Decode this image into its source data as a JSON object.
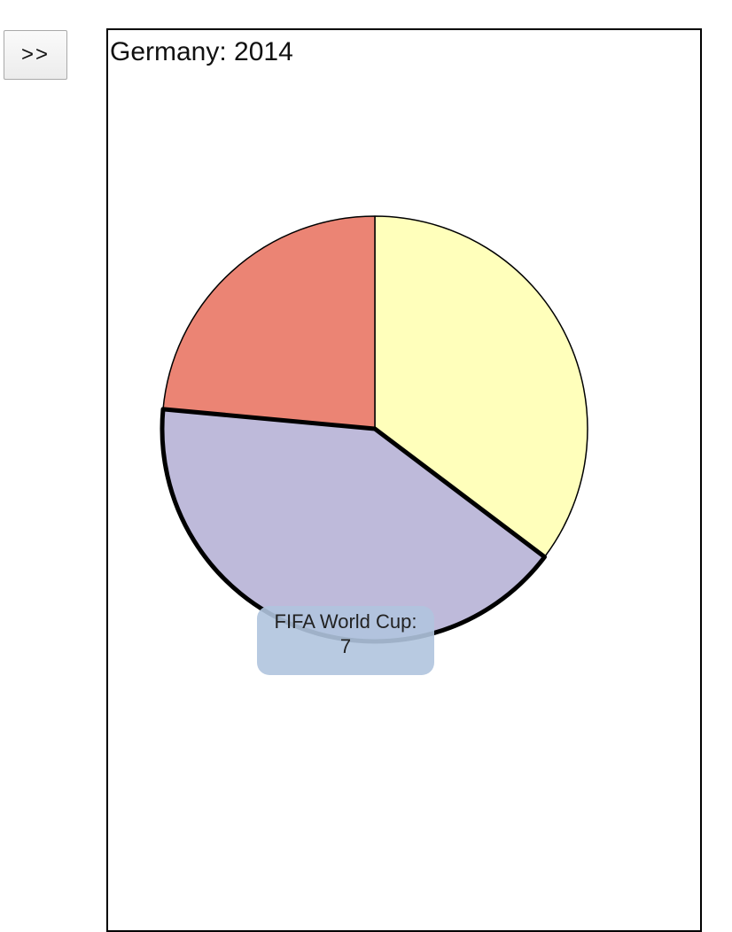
{
  "controls": {
    "next_label": ">>"
  },
  "chart_title": "Germany: 2014",
  "tooltip": {
    "label": "FIFA World Cup:",
    "value": "7"
  },
  "chart_data": {
    "type": "pie",
    "title": "Germany: 2014",
    "slices": [
      {
        "name": "",
        "value": 6,
        "color": "#ffffbb",
        "highlighted": false
      },
      {
        "name": "FIFA World Cup",
        "value": 7,
        "color": "#bebada",
        "highlighted": true
      },
      {
        "name": "",
        "value": 4,
        "color": "#eb8474",
        "highlighted": false
      }
    ]
  }
}
